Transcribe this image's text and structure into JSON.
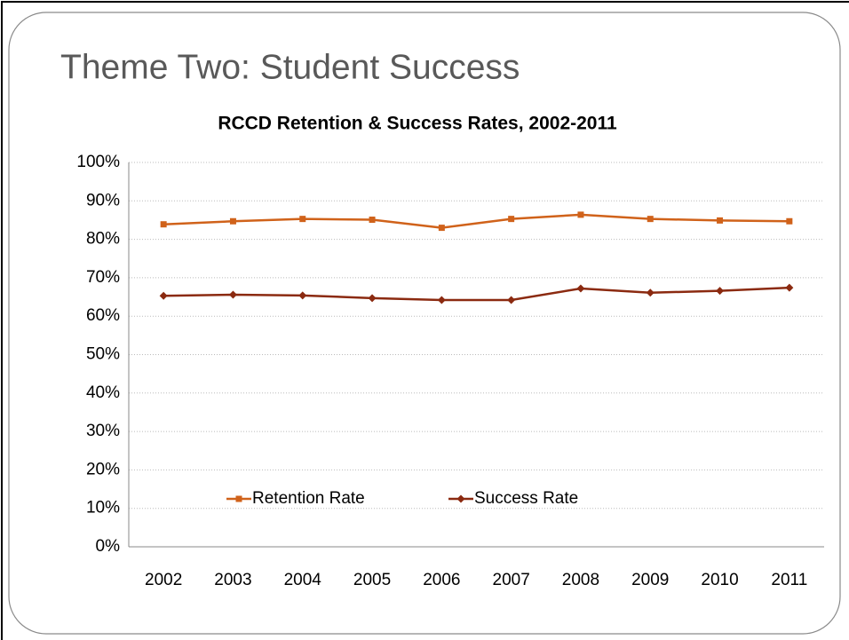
{
  "heading": "Theme Two: Student Success",
  "chart_data": {
    "type": "line",
    "title": "RCCD Retention & Success Rates, 2002-2011",
    "categories": [
      "2002",
      "2003",
      "2004",
      "2005",
      "2006",
      "2007",
      "2008",
      "2009",
      "2010",
      "2011"
    ],
    "series": [
      {
        "name": "Retention Rate",
        "color": "#d0621a",
        "marker": "square",
        "values": [
          83.9,
          84.7,
          85.3,
          85.1,
          83.0,
          85.3,
          86.4,
          85.3,
          84.9,
          84.7
        ]
      },
      {
        "name": "Success Rate",
        "color": "#8b2a10",
        "marker": "diamond",
        "values": [
          65.3,
          65.6,
          65.4,
          64.7,
          64.2,
          64.2,
          67.2,
          66.1,
          66.6,
          67.4
        ]
      }
    ],
    "ylim": [
      0,
      100
    ],
    "yticks": [
      {
        "value": 0,
        "label": "0%"
      },
      {
        "value": 10,
        "label": "10%"
      },
      {
        "value": 20,
        "label": "20%"
      },
      {
        "value": 30,
        "label": "30%"
      },
      {
        "value": 40,
        "label": "40%"
      },
      {
        "value": 50,
        "label": "50%"
      },
      {
        "value": 60,
        "label": "60%"
      },
      {
        "value": 70,
        "label": "70%"
      },
      {
        "value": 80,
        "label": "80%"
      },
      {
        "value": 90,
        "label": "90%"
      },
      {
        "value": 100,
        "label": "100%"
      }
    ],
    "grid": true,
    "legend": "lower left"
  }
}
